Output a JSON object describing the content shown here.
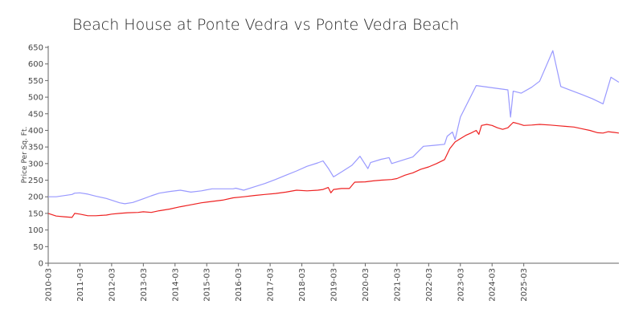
{
  "chart_data": {
    "type": "line",
    "title": "Beach House at Ponte Vedra vs Ponte Vedra Beach",
    "ylabel": "Price Per Sq. Ft.",
    "xlabel": "",
    "ylim": [
      0,
      650
    ],
    "yticks": [
      0,
      50,
      100,
      150,
      200,
      250,
      300,
      350,
      400,
      450,
      500,
      550,
      600,
      650
    ],
    "xticks": [
      "2010-03",
      "2011-03",
      "2012-03",
      "2013-03",
      "2014-03",
      "2015-03",
      "2016-03",
      "2017-03",
      "2018-03",
      "2019-03",
      "2020-03",
      "2021-03",
      "2022-03",
      "2023-03",
      "2024-03",
      "2025-03"
    ],
    "grid": false,
    "legend": "none",
    "series": [
      {
        "color": "#9999ff",
        "points": [
          [
            "2010-03",
            200
          ],
          [
            "2010-06",
            200
          ],
          [
            "2010-12",
            207
          ],
          [
            "2011-01",
            211
          ],
          [
            "2011-03",
            212
          ],
          [
            "2011-06",
            208
          ],
          [
            "2011-09",
            202
          ],
          [
            "2012-01",
            195
          ],
          [
            "2012-03",
            190
          ],
          [
            "2012-06",
            182
          ],
          [
            "2012-08",
            179
          ],
          [
            "2012-11",
            183
          ],
          [
            "2013-03",
            194
          ],
          [
            "2013-06",
            203
          ],
          [
            "2013-09",
            211
          ],
          [
            "2014-01",
            216
          ],
          [
            "2014-05",
            220
          ],
          [
            "2014-09",
            214
          ],
          [
            "2015-01",
            218
          ],
          [
            "2015-05",
            224
          ],
          [
            "2015-09",
            224
          ],
          [
            "2016-01",
            224
          ],
          [
            "2016-02",
            226
          ],
          [
            "2016-05",
            220
          ],
          [
            "2016-09",
            230
          ],
          [
            "2017-01",
            240
          ],
          [
            "2017-05",
            252
          ],
          [
            "2017-09",
            265
          ],
          [
            "2018-01",
            278
          ],
          [
            "2018-05",
            292
          ],
          [
            "2018-09",
            302
          ],
          [
            "2018-11",
            308
          ],
          [
            "2019-01",
            286
          ],
          [
            "2019-03",
            260
          ],
          [
            "2019-06",
            275
          ],
          [
            "2019-10",
            295
          ],
          [
            "2020-01",
            322
          ],
          [
            "2020-04",
            285
          ],
          [
            "2020-05",
            303
          ],
          [
            "2020-09",
            313
          ],
          [
            "2020-12",
            318
          ],
          [
            "2021-01",
            300
          ],
          [
            "2021-05",
            310
          ],
          [
            "2021-09",
            320
          ],
          [
            "2022-01",
            352
          ],
          [
            "2022-05",
            355
          ],
          [
            "2022-09",
            358
          ],
          [
            "2022-10",
            382
          ],
          [
            "2022-12",
            395
          ],
          [
            "2023-01",
            372
          ],
          [
            "2023-03",
            440
          ],
          [
            "2023-09",
            535
          ],
          [
            "2024-09",
            522
          ],
          [
            "2024-10",
            440
          ],
          [
            "2024-11",
            518
          ],
          [
            "2025-02",
            512
          ],
          [
            "2025-06",
            530
          ],
          [
            "2025-09",
            548
          ],
          [
            "2026-02",
            640
          ],
          [
            "2026-05",
            532
          ],
          [
            "2026-09",
            520
          ],
          [
            "2027-01",
            508
          ],
          [
            "2027-05",
            495
          ],
          [
            "2027-09",
            480
          ],
          [
            "2027-12",
            560
          ],
          [
            "2028-03",
            545
          ]
        ]
      },
      {
        "color": "#ee2222",
        "points": [
          [
            "2010-03",
            150
          ],
          [
            "2010-06",
            142
          ],
          [
            "2010-09",
            140
          ],
          [
            "2010-12",
            138
          ],
          [
            "2011-01",
            150
          ],
          [
            "2011-03",
            148
          ],
          [
            "2011-06",
            143
          ],
          [
            "2011-09",
            143
          ],
          [
            "2012-01",
            145
          ],
          [
            "2012-03",
            148
          ],
          [
            "2012-06",
            150
          ],
          [
            "2012-09",
            152
          ],
          [
            "2013-01",
            153
          ],
          [
            "2013-03",
            155
          ],
          [
            "2013-06",
            153
          ],
          [
            "2013-09",
            158
          ],
          [
            "2014-01",
            163
          ],
          [
            "2014-05",
            170
          ],
          [
            "2014-09",
            176
          ],
          [
            "2015-01",
            182
          ],
          [
            "2015-05",
            186
          ],
          [
            "2015-09",
            190
          ],
          [
            "2016-01",
            197
          ],
          [
            "2016-05",
            200
          ],
          [
            "2016-09",
            204
          ],
          [
            "2017-01",
            207
          ],
          [
            "2017-05",
            210
          ],
          [
            "2017-09",
            214
          ],
          [
            "2018-01",
            220
          ],
          [
            "2018-05",
            218
          ],
          [
            "2018-09",
            220
          ],
          [
            "2018-11",
            222
          ],
          [
            "2019-01",
            228
          ],
          [
            "2019-02",
            212
          ],
          [
            "2019-03",
            222
          ],
          [
            "2019-06",
            225
          ],
          [
            "2019-09",
            225
          ],
          [
            "2019-11",
            244
          ],
          [
            "2020-03",
            245
          ],
          [
            "2020-06",
            248
          ],
          [
            "2020-09",
            250
          ],
          [
            "2021-01",
            252
          ],
          [
            "2021-03",
            255
          ],
          [
            "2021-06",
            265
          ],
          [
            "2021-09",
            272
          ],
          [
            "2021-12",
            283
          ],
          [
            "2022-03",
            290
          ],
          [
            "2022-06",
            300
          ],
          [
            "2022-09",
            312
          ],
          [
            "2022-11",
            345
          ],
          [
            "2023-01",
            365
          ],
          [
            "2023-03",
            375
          ],
          [
            "2023-05",
            385
          ],
          [
            "2023-07",
            392
          ],
          [
            "2023-09",
            400
          ],
          [
            "2023-10",
            388
          ],
          [
            "2023-11",
            415
          ],
          [
            "2024-01",
            418
          ],
          [
            "2024-03",
            415
          ],
          [
            "2024-05",
            408
          ],
          [
            "2024-07",
            403
          ],
          [
            "2024-09",
            408
          ],
          [
            "2024-11",
            424
          ],
          [
            "2025-01",
            420
          ],
          [
            "2025-03",
            415
          ],
          [
            "2025-06",
            416
          ],
          [
            "2025-09",
            418
          ],
          [
            "2026-01",
            416
          ],
          [
            "2026-04",
            414
          ],
          [
            "2026-07",
            412
          ],
          [
            "2026-10",
            410
          ],
          [
            "2027-01",
            405
          ],
          [
            "2027-04",
            400
          ],
          [
            "2027-07",
            393
          ],
          [
            "2027-09",
            392
          ],
          [
            "2027-11",
            396
          ],
          [
            "2028-01",
            394
          ],
          [
            "2028-03",
            392
          ]
        ]
      }
    ]
  }
}
